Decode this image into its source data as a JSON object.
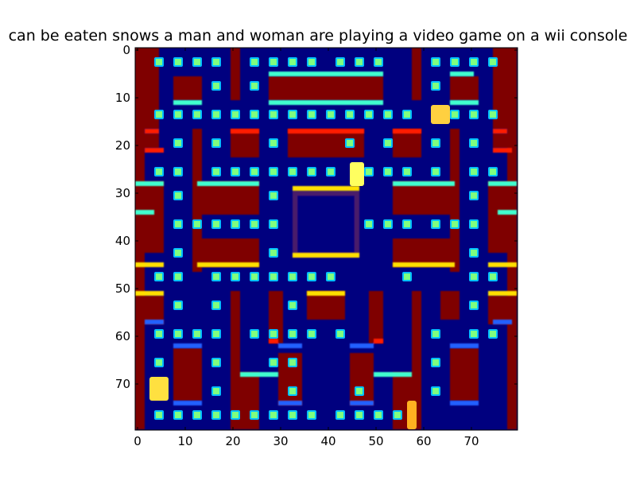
{
  "caption": "can be eaten snows   a man and woman are playing a video game on a wii console",
  "axes": {
    "xticks": [
      "0",
      "10",
      "20",
      "30",
      "40",
      "50",
      "60",
      "70"
    ],
    "yticks": [
      "0",
      "10",
      "20",
      "30",
      "40",
      "50",
      "60",
      "70"
    ]
  },
  "grid_size": 80,
  "colormap": "jet",
  "colors": {
    "background": "#00007f",
    "wall": "#7f0000",
    "wall_edge_red": "#ff1a00",
    "wall_edge_cyan": "#40ffd0",
    "wall_edge_yellow": "#ffe000",
    "pellet": "#7fff7f",
    "agent": "#ffff40"
  },
  "game_objects": {
    "ghost": {
      "label": "ghost-sprite"
    },
    "player": {
      "label": "player-sprite"
    },
    "player_2": {
      "label": "player-sprite-2"
    },
    "bonus": {
      "label": "bonus-sprite"
    }
  }
}
